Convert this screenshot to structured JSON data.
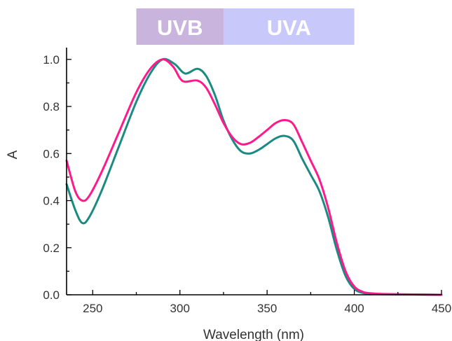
{
  "chart_data": {
    "type": "line",
    "title": "",
    "xlabel": "Wavelength (nm)",
    "ylabel": "A",
    "xlim": [
      235,
      450
    ],
    "ylim": [
      0,
      1.05
    ],
    "x_ticks": [
      250,
      300,
      350,
      400,
      450
    ],
    "y_ticks": [
      0.0,
      0.2,
      0.4,
      0.6,
      0.8,
      1.0
    ],
    "x_tick_labels": [
      "250",
      "300",
      "350",
      "400",
      "450"
    ],
    "y_tick_labels": [
      "0.0",
      "0.2",
      "0.4",
      "0.6",
      "0.8",
      "1.0"
    ],
    "grid": false,
    "bands": [
      {
        "label": "UVB",
        "x_start": 275,
        "x_end": 325,
        "color": "#c8b4dc"
      },
      {
        "label": "UVA",
        "x_start": 325,
        "x_end": 400,
        "color": "#c8c8fa"
      }
    ],
    "series": [
      {
        "color": "#1a8a82",
        "points": [
          [
            235,
            0.47
          ],
          [
            240,
            0.36
          ],
          [
            244,
            0.305
          ],
          [
            248,
            0.33
          ],
          [
            255,
            0.44
          ],
          [
            265,
            0.63
          ],
          [
            275,
            0.82
          ],
          [
            283,
            0.94
          ],
          [
            290,
            1.0
          ],
          [
            297,
            0.98
          ],
          [
            303,
            0.94
          ],
          [
            310,
            0.96
          ],
          [
            315,
            0.93
          ],
          [
            320,
            0.85
          ],
          [
            325,
            0.74
          ],
          [
            330,
            0.66
          ],
          [
            335,
            0.61
          ],
          [
            340,
            0.6
          ],
          [
            345,
            0.615
          ],
          [
            350,
            0.64
          ],
          [
            355,
            0.665
          ],
          [
            360,
            0.675
          ],
          [
            365,
            0.655
          ],
          [
            370,
            0.58
          ],
          [
            375,
            0.51
          ],
          [
            380,
            0.44
          ],
          [
            385,
            0.33
          ],
          [
            390,
            0.19
          ],
          [
            395,
            0.08
          ],
          [
            400,
            0.025
          ],
          [
            405,
            0.008
          ],
          [
            410,
            0.004
          ],
          [
            420,
            0.002
          ],
          [
            450,
            0.0
          ]
        ]
      },
      {
        "color": "#ff1a8c",
        "points": [
          [
            235,
            0.57
          ],
          [
            240,
            0.44
          ],
          [
            244,
            0.4
          ],
          [
            248,
            0.42
          ],
          [
            255,
            0.52
          ],
          [
            265,
            0.69
          ],
          [
            275,
            0.86
          ],
          [
            283,
            0.96
          ],
          [
            290,
            1.0
          ],
          [
            296,
            0.97
          ],
          [
            300,
            0.92
          ],
          [
            303,
            0.905
          ],
          [
            310,
            0.91
          ],
          [
            315,
            0.88
          ],
          [
            320,
            0.81
          ],
          [
            325,
            0.73
          ],
          [
            330,
            0.67
          ],
          [
            335,
            0.64
          ],
          [
            340,
            0.645
          ],
          [
            345,
            0.67
          ],
          [
            350,
            0.7
          ],
          [
            355,
            0.73
          ],
          [
            360,
            0.742
          ],
          [
            365,
            0.725
          ],
          [
            370,
            0.65
          ],
          [
            375,
            0.57
          ],
          [
            380,
            0.49
          ],
          [
            385,
            0.37
          ],
          [
            390,
            0.22
          ],
          [
            395,
            0.1
          ],
          [
            400,
            0.035
          ],
          [
            405,
            0.012
          ],
          [
            410,
            0.006
          ],
          [
            420,
            0.003
          ],
          [
            450,
            0.0
          ]
        ]
      }
    ]
  }
}
